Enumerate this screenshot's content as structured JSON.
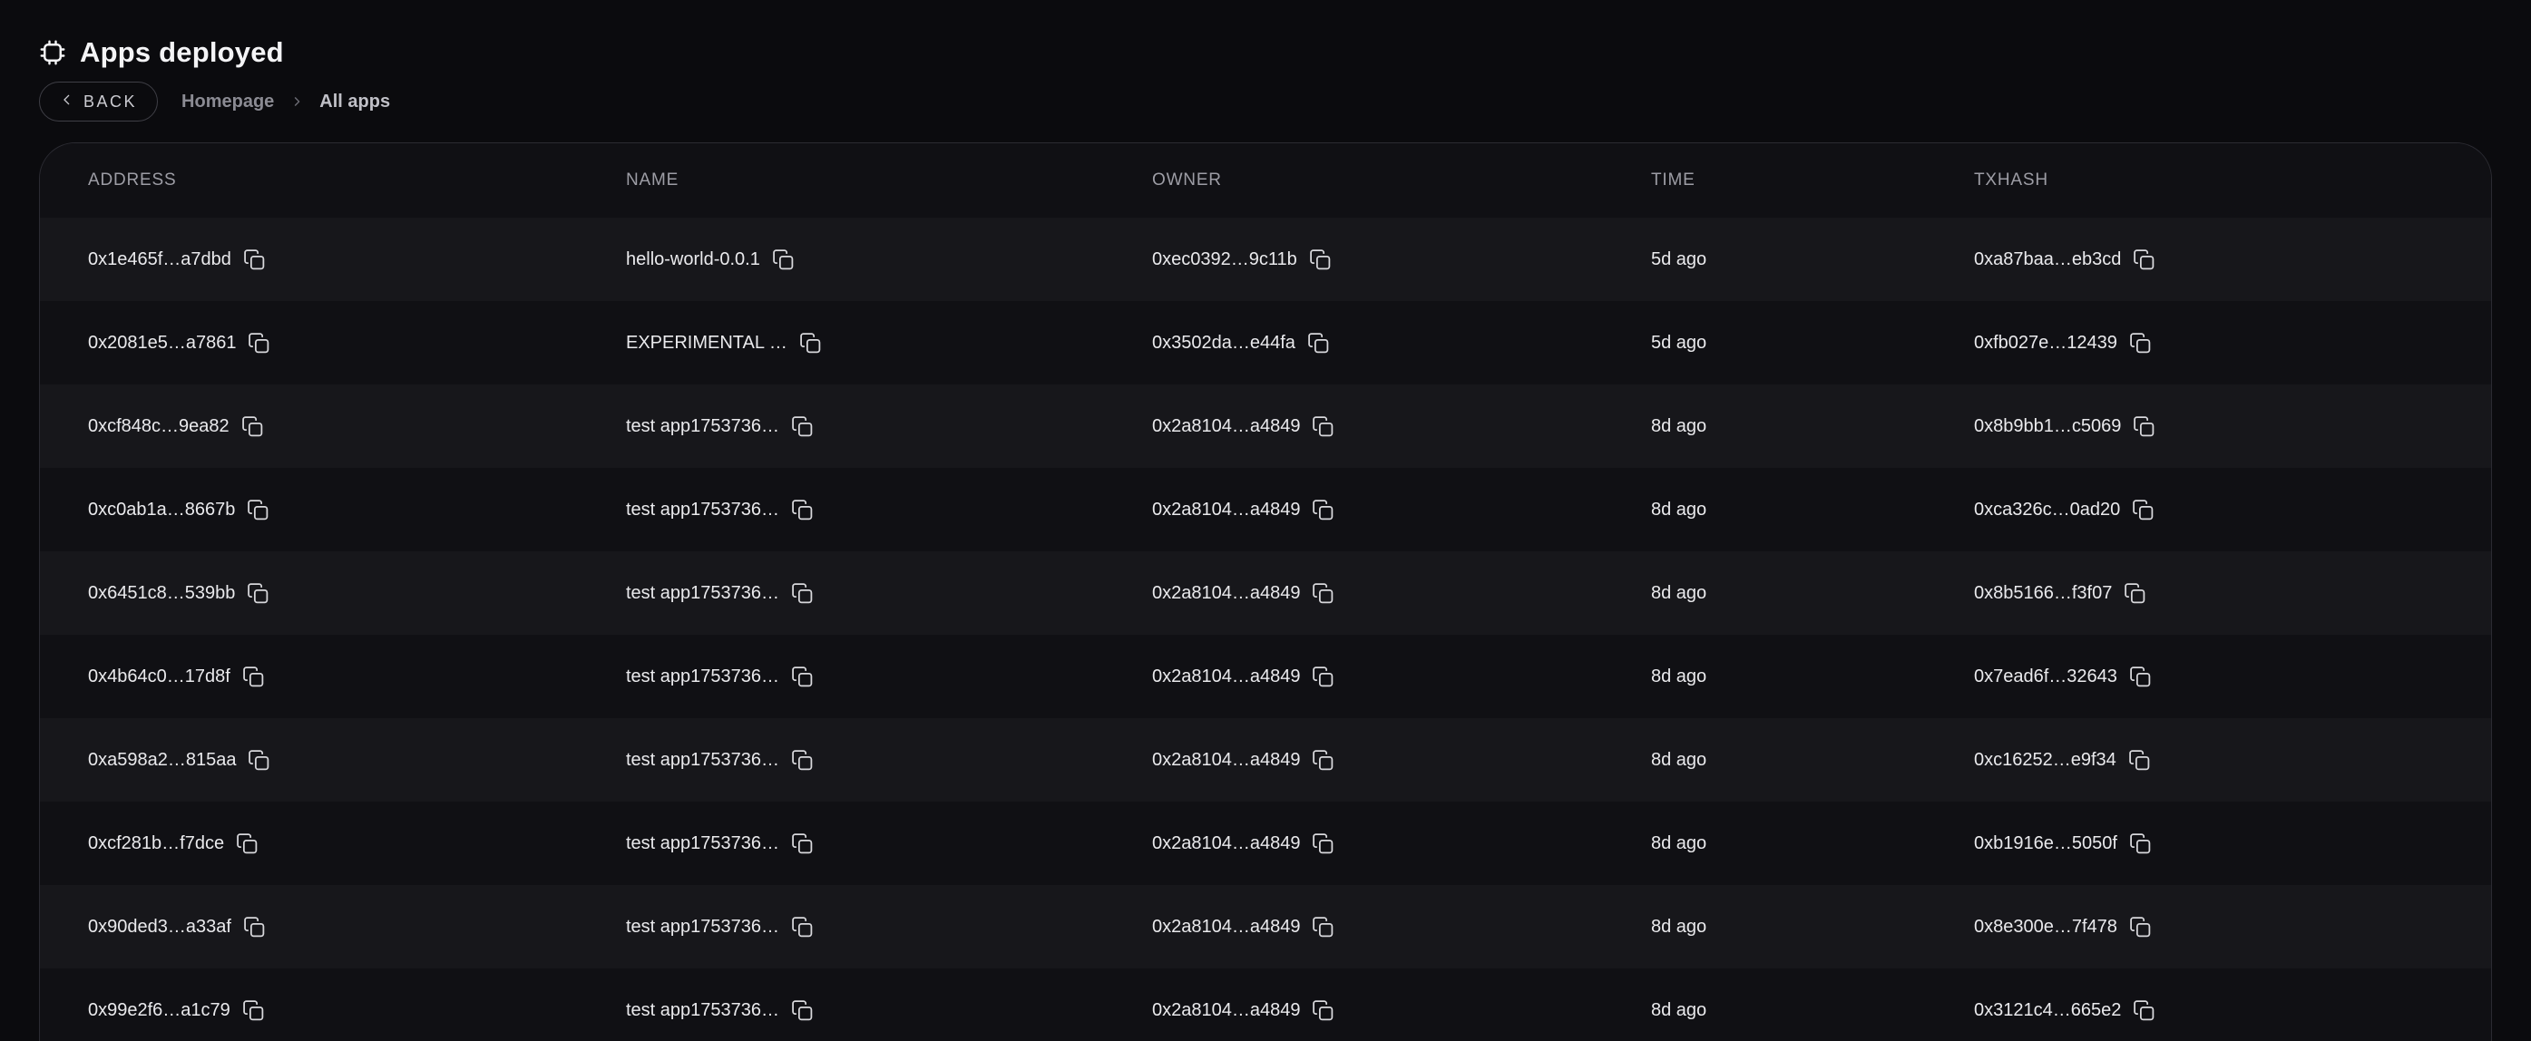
{
  "header": {
    "title": "Apps deployed",
    "title_icon": "cpu-icon",
    "back_label": "BACK",
    "back_icon": "chevron-left-icon",
    "breadcrumb": {
      "items": [
        "Homepage",
        "All apps"
      ],
      "separator_icon": "chevron-right-icon"
    }
  },
  "table": {
    "columns": [
      "ADDRESS",
      "NAME",
      "OWNER",
      "TIME",
      "TXHASH"
    ],
    "copy_icon": "copy-icon",
    "rows": [
      {
        "address": "0x1e465f…a7dbd",
        "name": "hello-world-0.0.1",
        "owner": "0xec0392…9c11b",
        "time": "5d ago",
        "txhash": "0xa87baa…eb3cd"
      },
      {
        "address": "0x2081e5…a7861",
        "name": "EXPERIMENTAL …",
        "owner": "0x3502da…e44fa",
        "time": "5d ago",
        "txhash": "0xfb027e…12439"
      },
      {
        "address": "0xcf848c…9ea82",
        "name": "test app1753736…",
        "owner": "0x2a8104…a4849",
        "time": "8d ago",
        "txhash": "0x8b9bb1…c5069"
      },
      {
        "address": "0xc0ab1a…8667b",
        "name": "test app1753736…",
        "owner": "0x2a8104…a4849",
        "time": "8d ago",
        "txhash": "0xca326c…0ad20"
      },
      {
        "address": "0x6451c8…539bb",
        "name": "test app1753736…",
        "owner": "0x2a8104…a4849",
        "time": "8d ago",
        "txhash": "0x8b5166…f3f07"
      },
      {
        "address": "0x4b64c0…17d8f",
        "name": "test app1753736…",
        "owner": "0x2a8104…a4849",
        "time": "8d ago",
        "txhash": "0x7ead6f…32643"
      },
      {
        "address": "0xa598a2…815aa",
        "name": "test app1753736…",
        "owner": "0x2a8104…a4849",
        "time": "8d ago",
        "txhash": "0xc16252…e9f34"
      },
      {
        "address": "0xcf281b…f7dce",
        "name": "test app1753736…",
        "owner": "0x2a8104…a4849",
        "time": "8d ago",
        "txhash": "0xb1916e…5050f"
      },
      {
        "address": "0x90ded3…a33af",
        "name": "test app1753736…",
        "owner": "0x2a8104…a4849",
        "time": "8d ago",
        "txhash": "0x8e300e…7f478"
      },
      {
        "address": "0x99e2f6…a1c79",
        "name": "test app1753736…",
        "owner": "0x2a8104…a4849",
        "time": "8d ago",
        "txhash": "0x3121c4…665e2"
      }
    ]
  },
  "colors": {
    "page_bg": "#0b0b0e",
    "card_bg": "#101014",
    "row_alt_bg": "#17171b",
    "card_border": "#2b2b32",
    "header_label": "#9d9da5",
    "cell_text": "#eaeaed",
    "title": "#f4f4f6"
  }
}
